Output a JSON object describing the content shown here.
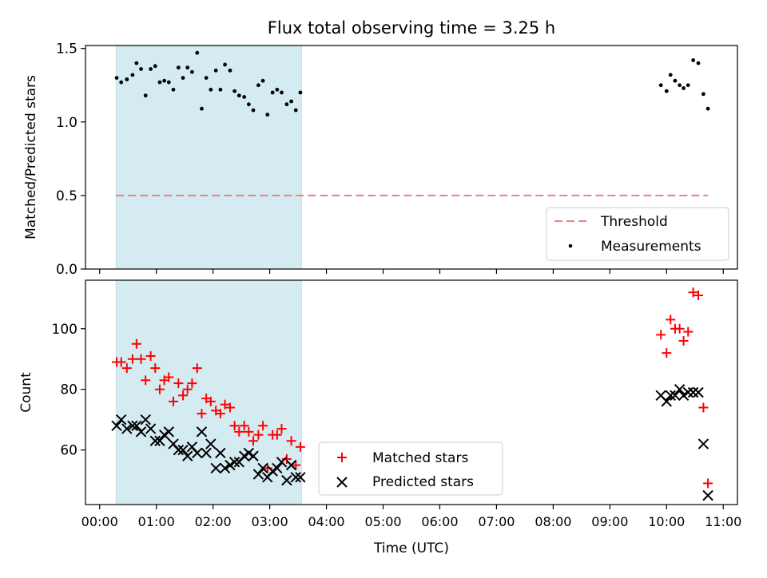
{
  "title": "Flux total observing time = 3.25 h",
  "chart_data": [
    {
      "type": "scatter",
      "panel": "top",
      "ylabel": "Matched/Predicted stars",
      "xlabel": "",
      "xlim": [
        -0.25,
        11.25
      ],
      "ylim": [
        0,
        1.52
      ],
      "yticks": [
        {
          "value": 0.0,
          "label": "0.0"
        },
        {
          "value": 0.5,
          "label": "0.5"
        },
        {
          "value": 1.0,
          "label": "1.0"
        },
        {
          "value": 1.5,
          "label": "1.5"
        }
      ],
      "shaded_interval": [
        0.29,
        3.56
      ],
      "shade_color": "#d4ebf2",
      "threshold": {
        "name": "Threshold",
        "value": 0.5,
        "x": [
          0.29,
          10.73
        ],
        "color": "#f08080"
      },
      "series": [
        {
          "name": "Measurements",
          "marker": "dot",
          "color": "#000000",
          "x": [
            0.3,
            0.38,
            0.48,
            0.58,
            0.65,
            0.73,
            0.81,
            0.9,
            0.98,
            1.06,
            1.14,
            1.22,
            1.3,
            1.39,
            1.47,
            1.55,
            1.63,
            1.72,
            1.8,
            1.88,
            1.96,
            2.05,
            2.13,
            2.21,
            2.3,
            2.38,
            2.46,
            2.55,
            2.63,
            2.71,
            2.8,
            2.88,
            2.96,
            3.05,
            3.13,
            3.21,
            3.3,
            3.38,
            3.46,
            3.54,
            9.9,
            10.0,
            10.07,
            10.15,
            10.23,
            10.3,
            10.38,
            10.47,
            10.56,
            10.65,
            10.73
          ],
          "y": [
            1.3,
            1.27,
            1.29,
            1.32,
            1.4,
            1.36,
            1.18,
            1.36,
            1.38,
            1.27,
            1.28,
            1.27,
            1.22,
            1.37,
            1.3,
            1.37,
            1.34,
            1.47,
            1.09,
            1.3,
            1.22,
            1.35,
            1.22,
            1.39,
            1.35,
            1.21,
            1.18,
            1.17,
            1.12,
            1.08,
            1.25,
            1.28,
            1.05,
            1.2,
            1.22,
            1.2,
            1.12,
            1.14,
            1.08,
            1.2,
            1.25,
            1.21,
            1.32,
            1.28,
            1.25,
            1.23,
            1.25,
            1.42,
            1.4,
            1.19,
            1.09
          ]
        }
      ],
      "legend": {
        "placement": "lower-right",
        "entries": [
          "Threshold",
          "Measurements"
        ]
      }
    },
    {
      "type": "scatter",
      "panel": "bottom",
      "ylabel": "Count",
      "xlabel": "Time (UTC)",
      "xlim": [
        -0.25,
        11.25
      ],
      "ylim": [
        42,
        116
      ],
      "yticks": [
        {
          "value": 60,
          "label": "60"
        },
        {
          "value": 80,
          "label": "80"
        },
        {
          "value": 100,
          "label": "100"
        }
      ],
      "xticks": [
        {
          "value": 0,
          "label": "00:00"
        },
        {
          "value": 1,
          "label": "01:00"
        },
        {
          "value": 2,
          "label": "02:00"
        },
        {
          "value": 3,
          "label": "03:00"
        },
        {
          "value": 4,
          "label": "04:00"
        },
        {
          "value": 5,
          "label": "05:00"
        },
        {
          "value": 6,
          "label": "06:00"
        },
        {
          "value": 7,
          "label": "07:00"
        },
        {
          "value": 8,
          "label": "08:00"
        },
        {
          "value": 9,
          "label": "09:00"
        },
        {
          "value": 10,
          "label": "10:00"
        },
        {
          "value": 11,
          "label": "11:00"
        }
      ],
      "shaded_interval": [
        0.29,
        3.56
      ],
      "shade_color": "#d4ebf2",
      "series": [
        {
          "name": "Matched stars",
          "marker": "plus",
          "color": "#ff0000",
          "x": [
            0.3,
            0.38,
            0.48,
            0.58,
            0.65,
            0.73,
            0.81,
            0.9,
            0.98,
            1.06,
            1.14,
            1.22,
            1.3,
            1.39,
            1.47,
            1.55,
            1.63,
            1.72,
            1.8,
            1.88,
            1.96,
            2.05,
            2.13,
            2.21,
            2.3,
            2.38,
            2.46,
            2.55,
            2.63,
            2.71,
            2.8,
            2.88,
            2.96,
            3.05,
            3.13,
            3.21,
            3.3,
            3.38,
            3.46,
            3.54,
            9.9,
            10.0,
            10.07,
            10.15,
            10.23,
            10.3,
            10.38,
            10.47,
            10.56,
            10.65,
            10.73
          ],
          "y": [
            89,
            89,
            87,
            90,
            95,
            90,
            83,
            91,
            87,
            80,
            83,
            84,
            76,
            82,
            78,
            80,
            82,
            87,
            72,
            77,
            76,
            73,
            72,
            75,
            74,
            68,
            66,
            68,
            66,
            63,
            65,
            68,
            54,
            65,
            65,
            67,
            57,
            63,
            55,
            61,
            98,
            92,
            103,
            100,
            100,
            96,
            99,
            112,
            111,
            74,
            49
          ]
        },
        {
          "name": "Predicted stars",
          "marker": "x",
          "color": "#000000",
          "x": [
            0.3,
            0.38,
            0.48,
            0.58,
            0.65,
            0.73,
            0.81,
            0.9,
            0.98,
            1.06,
            1.14,
            1.22,
            1.3,
            1.39,
            1.47,
            1.55,
            1.63,
            1.72,
            1.8,
            1.88,
            1.96,
            2.05,
            2.13,
            2.21,
            2.3,
            2.38,
            2.46,
            2.55,
            2.63,
            2.71,
            2.8,
            2.88,
            2.96,
            3.05,
            3.13,
            3.21,
            3.3,
            3.38,
            3.46,
            3.54,
            9.9,
            10.0,
            10.07,
            10.15,
            10.23,
            10.3,
            10.38,
            10.47,
            10.56,
            10.65,
            10.73
          ],
          "y": [
            68,
            70,
            67,
            68,
            68,
            66,
            70,
            67,
            63,
            63,
            65,
            66,
            62,
            60,
            60,
            58,
            61,
            59,
            66,
            59,
            62,
            54,
            59,
            54,
            55,
            56,
            56,
            58,
            59,
            58,
            52,
            54,
            51,
            53,
            54,
            56,
            50,
            55,
            51,
            51,
            78,
            76,
            78,
            78,
            80,
            78,
            79,
            79,
            79,
            62,
            45
          ]
        }
      ],
      "legend": {
        "placement": "lower-center",
        "entries": [
          "Matched stars",
          "Predicted stars"
        ]
      }
    }
  ]
}
